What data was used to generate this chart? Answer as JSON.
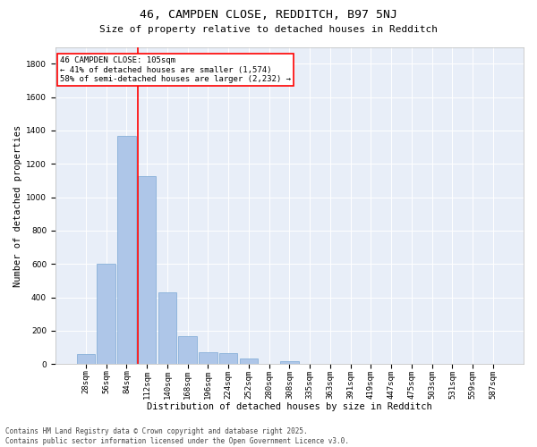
{
  "title1": "46, CAMPDEN CLOSE, REDDITCH, B97 5NJ",
  "title2": "Size of property relative to detached houses in Redditch",
  "xlabel": "Distribution of detached houses by size in Redditch",
  "ylabel": "Number of detached properties",
  "bin_labels": [
    "28sqm",
    "56sqm",
    "84sqm",
    "112sqm",
    "140sqm",
    "168sqm",
    "196sqm",
    "224sqm",
    "252sqm",
    "280sqm",
    "308sqm",
    "335sqm",
    "363sqm",
    "391sqm",
    "419sqm",
    "447sqm",
    "475sqm",
    "503sqm",
    "531sqm",
    "559sqm",
    "587sqm"
  ],
  "bar_values": [
    60,
    600,
    1365,
    1125,
    430,
    170,
    70,
    65,
    35,
    0,
    20,
    0,
    0,
    0,
    0,
    0,
    0,
    0,
    0,
    0,
    0
  ],
  "bar_color": "#aec6e8",
  "bar_edge_color": "#7aa8d4",
  "vline_color": "red",
  "vline_x": 2.57,
  "annotation_text": "46 CAMPDEN CLOSE: 105sqm\n← 41% of detached houses are smaller (1,574)\n58% of semi-detached houses are larger (2,232) →",
  "annotation_box_color": "white",
  "annotation_box_edge_color": "red",
  "ylim": [
    0,
    1900
  ],
  "yticks": [
    0,
    200,
    400,
    600,
    800,
    1000,
    1200,
    1400,
    1600,
    1800
  ],
  "background_color": "#e8eef8",
  "grid_color": "white",
  "footer_text": "Contains HM Land Registry data © Crown copyright and database right 2025.\nContains public sector information licensed under the Open Government Licence v3.0.",
  "title1_fontsize": 9.5,
  "title2_fontsize": 8,
  "xlabel_fontsize": 7.5,
  "ylabel_fontsize": 7.5,
  "tick_fontsize": 6.5,
  "annotation_fontsize": 6.5,
  "footer_fontsize": 5.5
}
